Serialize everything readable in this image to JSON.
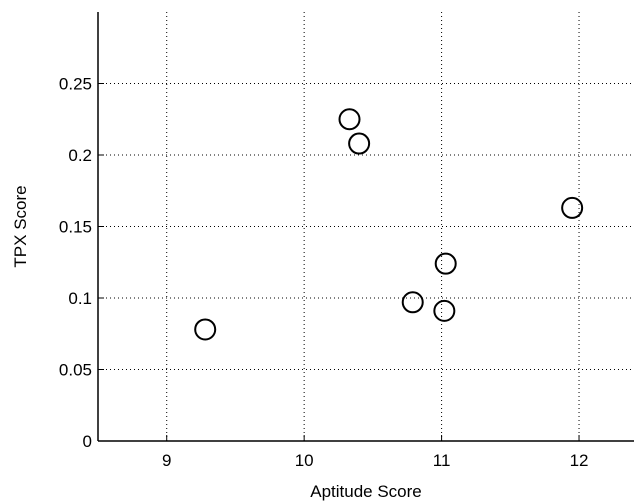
{
  "chart_data": {
    "type": "scatter",
    "title": "",
    "xlabel": "Aptitude Score",
    "ylabel": "TPX Score",
    "xlim": [
      8.5,
      12.4
    ],
    "ylim": [
      0,
      0.3
    ],
    "xticks": [
      9,
      10,
      11,
      12
    ],
    "yticks": [
      0,
      0.05,
      0.1,
      0.15,
      0.2,
      0.25
    ],
    "xtick_labels": [
      "9",
      "10",
      "11",
      "12"
    ],
    "ytick_labels": [
      "0",
      "0.05",
      "0.1",
      "0.15",
      "0.2",
      "0.25"
    ],
    "grid": true,
    "marker": "open-circle",
    "points": [
      {
        "x": 9.28,
        "y": 0.078
      },
      {
        "x": 10.33,
        "y": 0.225
      },
      {
        "x": 10.4,
        "y": 0.208
      },
      {
        "x": 10.79,
        "y": 0.097
      },
      {
        "x": 11.02,
        "y": 0.091
      },
      {
        "x": 11.03,
        "y": 0.124
      },
      {
        "x": 11.95,
        "y": 0.163
      }
    ]
  }
}
